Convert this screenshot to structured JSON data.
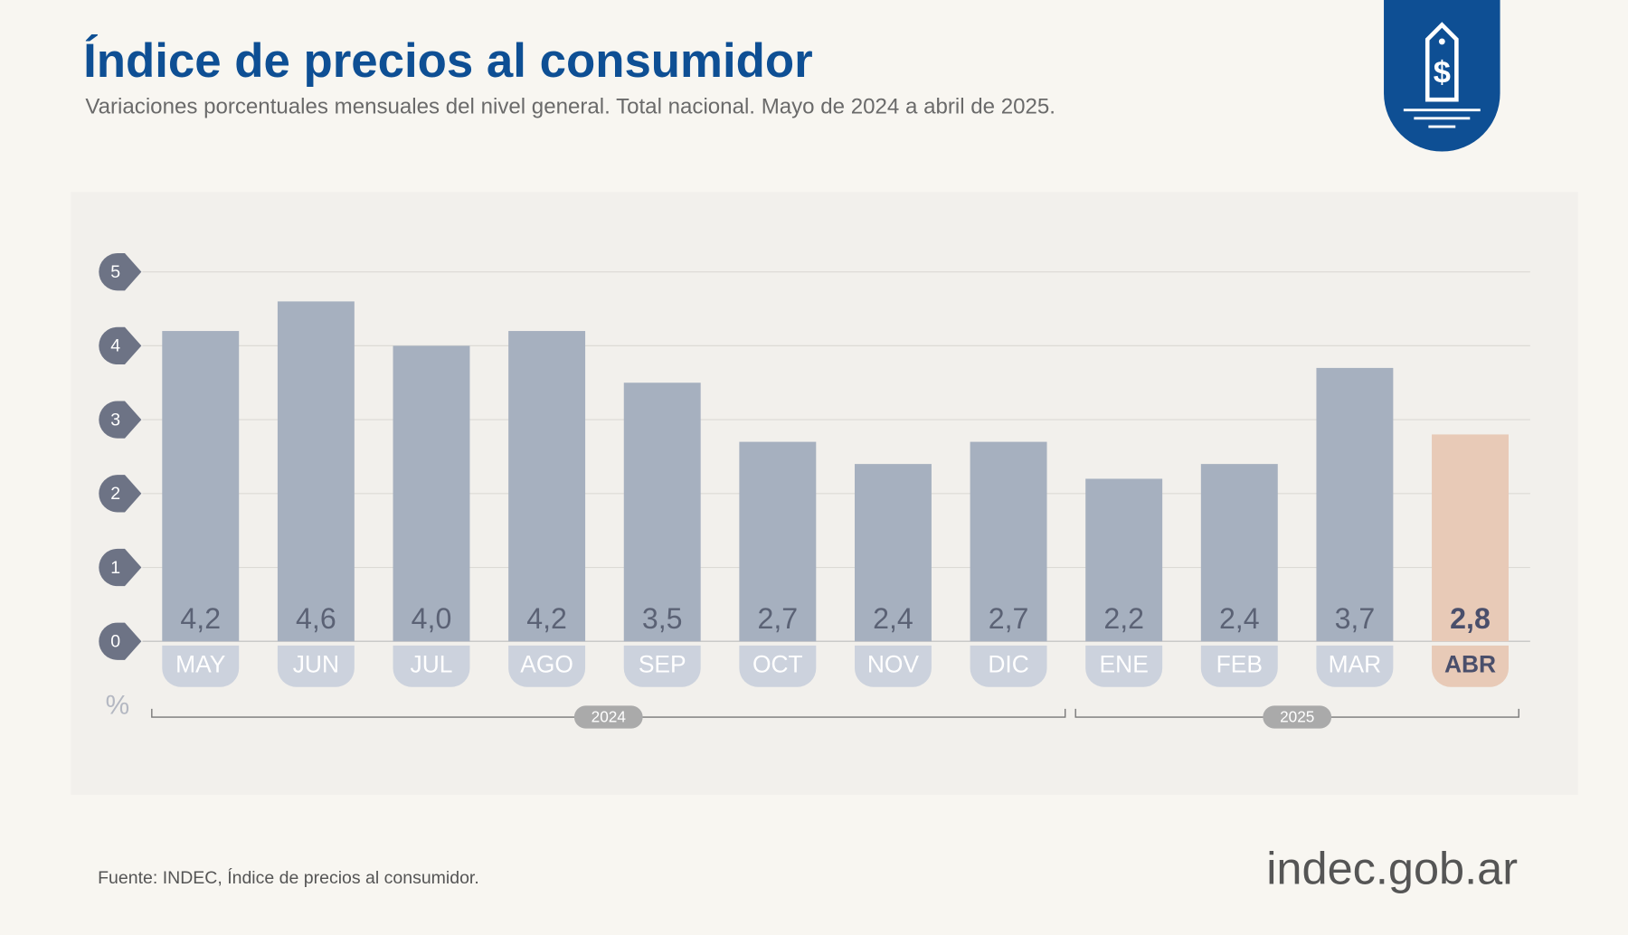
{
  "chart_data": {
    "type": "bar",
    "title": "Índice de precios al consumidor",
    "subtitle": "Variaciones porcentuales mensuales del nivel general. Total nacional. Mayo de 2024 a abril de 2025.",
    "categories": [
      "MAY",
      "JUN",
      "JUL",
      "AGO",
      "SEP",
      "OCT",
      "NOV",
      "DIC",
      "ENE",
      "FEB",
      "MAR",
      "ABR"
    ],
    "values": [
      4.2,
      4.6,
      4.0,
      4.2,
      3.5,
      2.7,
      2.4,
      2.7,
      2.2,
      2.4,
      3.7,
      2.8
    ],
    "value_labels": [
      "4,2",
      "4,6",
      "4,0",
      "4,2",
      "3,5",
      "2,7",
      "2,4",
      "2,7",
      "2,2",
      "2,4",
      "3,7",
      "2,8"
    ],
    "colors": [
      "#a6b0bf",
      "#a6b0bf",
      "#a6b0bf",
      "#a6b0bf",
      "#a6b0bf",
      "#a6b0bf",
      "#a6b0bf",
      "#a6b0bf",
      "#a6b0bf",
      "#a6b0bf",
      "#a6b0bf",
      "#e8cab7"
    ],
    "ylim": [
      0,
      5
    ],
    "yticks": [
      0,
      1,
      2,
      3,
      4,
      5
    ],
    "grid": true,
    "unit_label": "%",
    "year_groups": [
      {
        "label": "2024",
        "months": 8
      },
      {
        "label": "2025",
        "months": 4
      }
    ],
    "source": "Fuente: INDEC, Índice de precios al consumidor.",
    "brand": "indec.gob.ar"
  }
}
